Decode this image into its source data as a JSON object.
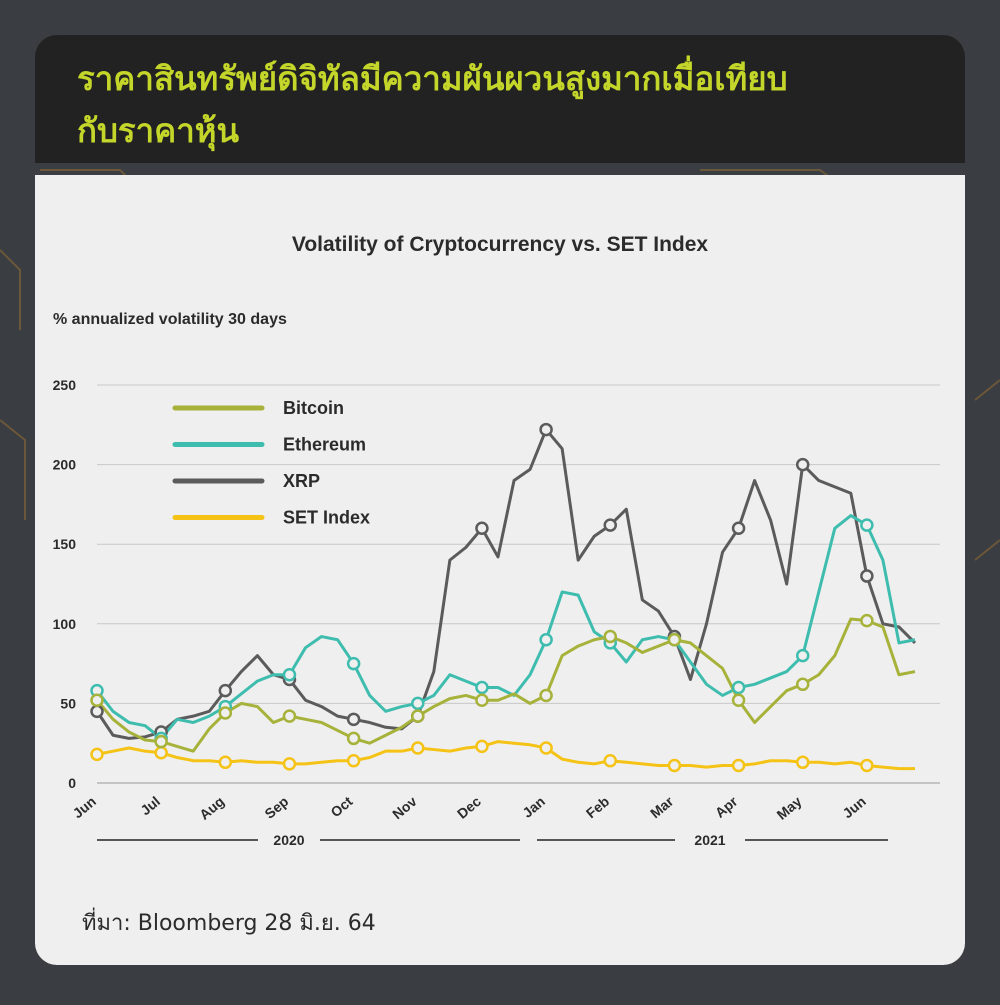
{
  "header": {
    "title_line1": "ราคาสินทรัพย์ดิจิทัลมีความผันผวนสูงมากเมื่อเทียบ",
    "title_line2": "กับราคาหุ้น"
  },
  "source": "ที่มา: Bloomberg 28 มิ.ย. 64",
  "chart_data": {
    "type": "line",
    "title": "Volatility of Cryptocurrency  vs. SET Index",
    "ylabel": "% annualized volatility 30 days",
    "ylim": [
      0,
      250
    ],
    "yticks": [
      0,
      50,
      100,
      150,
      200,
      250
    ],
    "grid": true,
    "legend_position": "top-left",
    "x_tick_labels": [
      "Jun",
      "Jul",
      "Aug",
      "Sep",
      "Oct",
      "Nov",
      "Dec",
      "Jan",
      "Feb",
      "Mar",
      "Apr",
      "May",
      "Jun"
    ],
    "year_labels": [
      "2020",
      "2021"
    ],
    "x": [
      0,
      0.25,
      0.5,
      0.75,
      1,
      1.25,
      1.5,
      1.75,
      2,
      2.25,
      2.5,
      2.75,
      3,
      3.25,
      3.5,
      3.75,
      4,
      4.25,
      4.5,
      4.75,
      5,
      5.25,
      5.5,
      5.75,
      6,
      6.25,
      6.5,
      6.75,
      7,
      7.25,
      7.5,
      7.75,
      8,
      8.25,
      8.5,
      8.75,
      9,
      9.25,
      9.5,
      9.75,
      10,
      10.25,
      10.5,
      10.75,
      11,
      11.25,
      11.5,
      11.75,
      12,
      12.25,
      12.5,
      12.75
    ],
    "series": [
      {
        "name": "Bitcoin",
        "color": "#a7b23a",
        "values": [
          52,
          40,
          32,
          27,
          26,
          23,
          20,
          34,
          44,
          50,
          48,
          38,
          42,
          40,
          38,
          33,
          28,
          25,
          30,
          35,
          42,
          48,
          53,
          55,
          52,
          52,
          56,
          50,
          55,
          80,
          86,
          90,
          92,
          88,
          82,
          86,
          90,
          88,
          80,
          72,
          52,
          38,
          48,
          58,
          62,
          68,
          80,
          103,
          102,
          98,
          68,
          70
        ]
      },
      {
        "name": "Ethereum",
        "color": "#3ebdaf",
        "values": [
          58,
          45,
          38,
          36,
          28,
          40,
          38,
          42,
          48,
          56,
          64,
          68,
          68,
          85,
          92,
          90,
          75,
          55,
          45,
          48,
          50,
          55,
          68,
          64,
          60,
          60,
          55,
          68,
          90,
          120,
          118,
          95,
          88,
          76,
          90,
          92,
          90,
          76,
          62,
          55,
          60,
          62,
          66,
          70,
          80,
          120,
          160,
          168,
          162,
          140,
          88,
          90
        ]
      },
      {
        "name": "XRP",
        "color": "#5b5b5b",
        "values": [
          45,
          30,
          28,
          29,
          32,
          40,
          42,
          45,
          58,
          70,
          80,
          68,
          65,
          52,
          48,
          42,
          40,
          38,
          35,
          34,
          42,
          70,
          140,
          148,
          160,
          142,
          190,
          197,
          222,
          210,
          140,
          155,
          162,
          172,
          115,
          108,
          92,
          65,
          100,
          145,
          160,
          190,
          165,
          125,
          200,
          190,
          186,
          182,
          130,
          100,
          98,
          88
        ]
      },
      {
        "name": "SET Index",
        "color": "#f5c316",
        "values": [
          18,
          20,
          22,
          20,
          19,
          16,
          14,
          14,
          13,
          14,
          13,
          13,
          12,
          12,
          13,
          14,
          14,
          16,
          20,
          20,
          22,
          21,
          20,
          22,
          23,
          26,
          25,
          24,
          22,
          15,
          13,
          12,
          14,
          13,
          12,
          11,
          11,
          11,
          10,
          11,
          11,
          12,
          14,
          14,
          13,
          13,
          12,
          13,
          11,
          10,
          9,
          9
        ]
      }
    ]
  }
}
